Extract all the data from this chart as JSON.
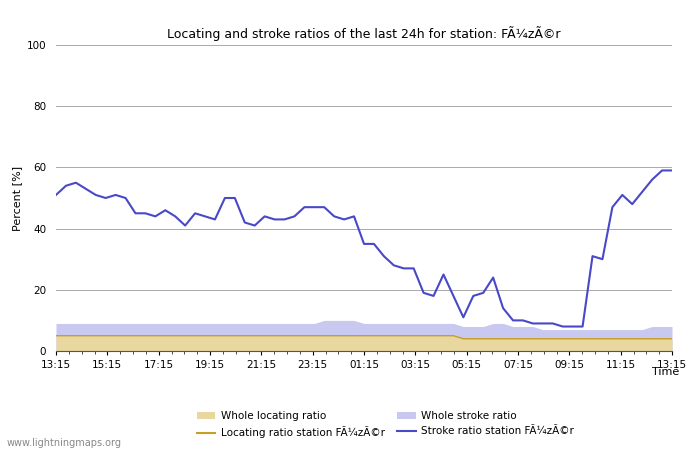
{
  "title_text": "Locating and stroke ratios of the last 24h for station: FÃ¼zÃ©r",
  "xlabel": "Time",
  "ylabel": "Percent [%]",
  "ylim": [
    0,
    100
  ],
  "yticks": [
    0,
    20,
    40,
    60,
    80,
    100
  ],
  "xtick_labels": [
    "13:15",
    "15:15",
    "17:15",
    "19:15",
    "21:15",
    "23:15",
    "01:15",
    "03:15",
    "05:15",
    "07:15",
    "09:15",
    "11:15",
    "13:15"
  ],
  "watermark": "www.lightningmaps.org",
  "stroke_ratio_station": [
    51,
    54,
    55,
    53,
    51,
    50,
    51,
    50,
    45,
    45,
    44,
    46,
    44,
    41,
    45,
    44,
    43,
    50,
    50,
    42,
    41,
    44,
    43,
    43,
    44,
    47,
    47,
    47,
    44,
    43,
    44,
    35,
    35,
    31,
    28,
    27,
    27,
    19,
    18,
    25,
    18,
    11,
    18,
    19,
    24,
    14,
    10,
    10,
    9,
    9,
    9,
    8,
    8,
    8,
    31,
    30,
    47,
    51,
    48,
    52,
    56,
    59,
    59
  ],
  "whole_stroke_ratio": [
    9,
    9,
    9,
    9,
    9,
    9,
    9,
    9,
    9,
    9,
    9,
    9,
    9,
    9,
    9,
    9,
    9,
    9,
    9,
    9,
    9,
    9,
    9,
    9,
    9,
    9,
    9,
    10,
    10,
    10,
    10,
    9,
    9,
    9,
    9,
    9,
    9,
    9,
    9,
    9,
    9,
    8,
    8,
    8,
    9,
    9,
    8,
    8,
    8,
    7,
    7,
    7,
    7,
    7,
    7,
    7,
    7,
    7,
    7,
    7,
    8,
    8,
    8
  ],
  "whole_locating_ratio": [
    5,
    5,
    5,
    5,
    5,
    5,
    5,
    5,
    5,
    5,
    5,
    5,
    5,
    5,
    5,
    5,
    5,
    5,
    5,
    5,
    5,
    5,
    5,
    5,
    5,
    5,
    5,
    5,
    5,
    5,
    5,
    5,
    5,
    5,
    5,
    5,
    5,
    5,
    5,
    5,
    5,
    4,
    4,
    4,
    4,
    4,
    4,
    4,
    4,
    4,
    4,
    4,
    4,
    4,
    4,
    4,
    4,
    4,
    4,
    4,
    4,
    4,
    4
  ],
  "locating_ratio_station": [
    5,
    5,
    5,
    5,
    5,
    5,
    5,
    5,
    5,
    5,
    5,
    5,
    5,
    5,
    5,
    5,
    5,
    5,
    5,
    5,
    5,
    5,
    5,
    5,
    5,
    5,
    5,
    5,
    5,
    5,
    5,
    5,
    5,
    5,
    5,
    5,
    5,
    5,
    5,
    5,
    5,
    4,
    4,
    4,
    4,
    4,
    4,
    4,
    4,
    4,
    4,
    4,
    4,
    4,
    4,
    4,
    4,
    4,
    4,
    4,
    4,
    4,
    4
  ],
  "fill_locating_color": "#e8d8a0",
  "fill_stroke_color": "#c8c8f0",
  "line_locating_color": "#c8a020",
  "line_stroke_color": "#4848c8",
  "bg_color": "#ffffff",
  "grid_color": "#aaaaaa",
  "legend_labels": [
    "Whole locating ratio",
    "Locating ratio station FÃ¼zÃ©r",
    "Whole stroke ratio",
    "Stroke ratio station FÃ¼zÃ©r"
  ]
}
